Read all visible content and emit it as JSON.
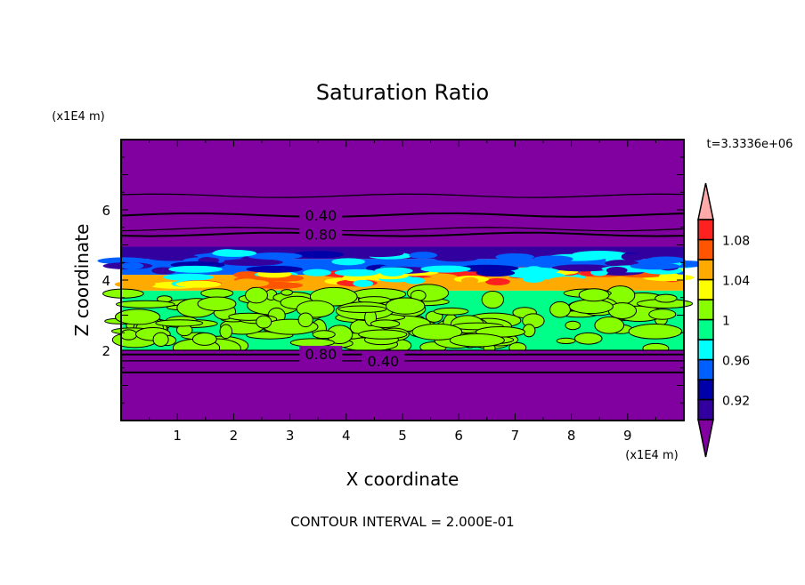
{
  "chart_data": {
    "type": "heatmap",
    "title": "Saturation Ratio",
    "xlabel": "X coordinate",
    "ylabel": "Z coordinate",
    "x_unit": "(x1E4 m)",
    "y_unit": "(x1E4 m)",
    "xlim": [
      0,
      10
    ],
    "ylim": [
      0,
      8
    ],
    "x_ticks": [
      "1",
      "2",
      "3",
      "4",
      "5",
      "6",
      "7",
      "8",
      "9"
    ],
    "y_ticks": [
      "2",
      "4",
      "6"
    ],
    "time_label": "t=3.3336e+06",
    "footer": "CONTOUR INTERVAL = 2.000E-01",
    "colorbar": {
      "levels": [
        0.9,
        0.92,
        0.94,
        0.96,
        0.98,
        1.0,
        1.02,
        1.04,
        1.06,
        1.08,
        1.1
      ],
      "tick_labels": [
        "0.92",
        "0.96",
        "1",
        "1.04",
        "1.08"
      ],
      "tick_values": [
        0.92,
        0.96,
        1.0,
        1.04,
        1.08
      ],
      "colors": [
        "#3300a0",
        "#0000a8",
        "#0060ff",
        "#00ffff",
        "#00ff88",
        "#88ff00",
        "#ffff00",
        "#ffaa00",
        "#ff5500",
        "#ff2020"
      ],
      "under_color": "#8000a0",
      "over_color": "#ffaaaa"
    },
    "contour_lines_z": [
      1.37,
      1.7,
      1.88,
      2.0,
      5.3,
      5.45,
      5.85,
      6.4
    ],
    "contour_labels": [
      {
        "text": "0.40",
        "x": 3.55,
        "z": 5.85
      },
      {
        "text": "0.80",
        "x": 3.55,
        "z": 5.3
      },
      {
        "text": "0.80",
        "x": 3.55,
        "z": 1.9
      },
      {
        "text": "0.40",
        "x": 3.55,
        "z": 1.7
      }
    ],
    "bands": [
      {
        "z0": 0,
        "z1": 2.0,
        "value": "under"
      },
      {
        "z0": 2.0,
        "z1": 3.7,
        "value": 0.99
      },
      {
        "z0": 3.7,
        "z1": 4.15,
        "value": 1.05
      },
      {
        "z0": 4.15,
        "z1": 4.6,
        "value": 0.95
      },
      {
        "z0": 4.6,
        "z1": 4.95,
        "value": 0.91
      },
      {
        "z0": 4.95,
        "z1": 8,
        "value": "under"
      }
    ]
  }
}
